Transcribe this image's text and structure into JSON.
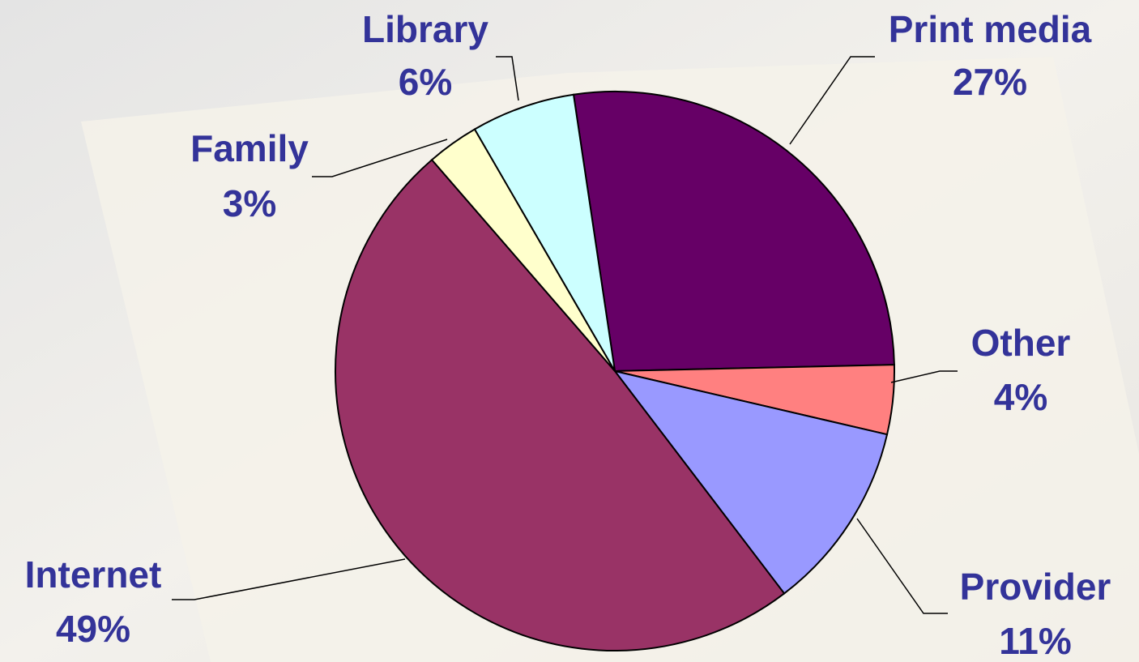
{
  "chart_data": {
    "type": "pie",
    "categories": [
      "Print media",
      "Other",
      "Provider",
      "Internet",
      "Family",
      "Library"
    ],
    "values": [
      27,
      4,
      11,
      49,
      3,
      6
    ],
    "value_labels": [
      "27%",
      "4%",
      "11%",
      "49%",
      "3%",
      "6%"
    ],
    "colors": [
      "#660066",
      "#ff8080",
      "#9999ff",
      "#993366",
      "#ffffcc",
      "#ccffff"
    ]
  }
}
